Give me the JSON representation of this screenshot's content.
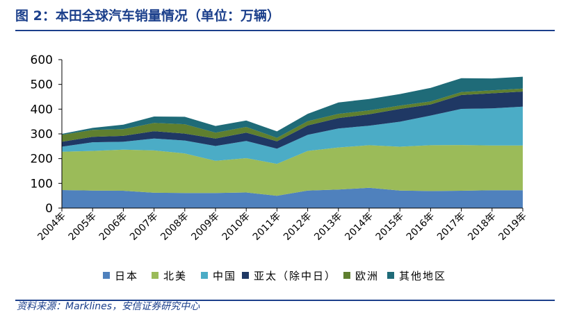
{
  "header": {
    "title": "图 2：本田全球汽车销量情况（单位：万辆）"
  },
  "footer": {
    "source": "资料来源：Marklines，安信证券研究中心"
  },
  "chart_data": {
    "type": "area",
    "stacked": true,
    "title": "图 2：本田全球汽车销量情况（单位：万辆）",
    "xlabel": "",
    "ylabel": "",
    "ylim": [
      0,
      600
    ],
    "yticks": [
      "0",
      "100",
      "200",
      "300",
      "400",
      "500",
      "600"
    ],
    "categories": [
      "2004年",
      "2005年",
      "2006年",
      "2007年",
      "2008年",
      "2009年",
      "2010年",
      "2011年",
      "2012年",
      "2013年",
      "2014年",
      "2015年",
      "2016年",
      "2017年",
      "2018年",
      "2019年"
    ],
    "legend_position": "bottom",
    "grid": false,
    "series": [
      {
        "name": "日本",
        "color": "#4f81bd",
        "values": [
          73,
          71,
          70,
          62,
          61,
          61,
          63,
          50,
          71,
          75,
          82,
          71,
          69,
          70,
          72,
          72
        ]
      },
      {
        "name": "北美",
        "color": "#9bbb59",
        "values": [
          155,
          160,
          166,
          171,
          160,
          130,
          139,
          129,
          160,
          170,
          172,
          177,
          185,
          185,
          181,
          181
        ]
      },
      {
        "name": "中国",
        "color": "#4bacc6",
        "values": [
          20,
          35,
          32,
          48,
          52,
          60,
          69,
          61,
          65,
          77,
          79,
          101,
          120,
          146,
          150,
          157
        ]
      },
      {
        "name": "亚太（除中日）",
        "color": "#1f3864",
        "values": [
          20,
          22,
          24,
          30,
          28,
          30,
          34,
          30,
          38,
          42,
          46,
          52,
          45,
          56,
          61,
          61
        ]
      },
      {
        "name": "欧洲",
        "color": "#5f7f2f",
        "values": [
          28,
          28,
          27,
          33,
          38,
          24,
          23,
          14,
          17,
          17,
          16,
          13,
          12,
          12,
          12,
          12
        ]
      },
      {
        "name": "其他地区",
        "color": "#1f6b78",
        "values": [
          4,
          8,
          18,
          26,
          30,
          27,
          26,
          26,
          30,
          46,
          46,
          47,
          55,
          56,
          48,
          48
        ]
      }
    ]
  }
}
